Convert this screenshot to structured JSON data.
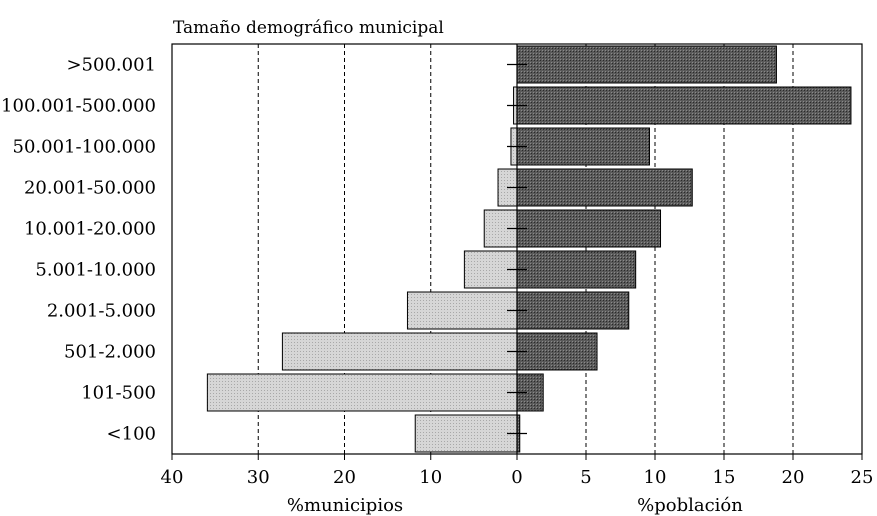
{
  "chart_data": {
    "type": "bar",
    "title": "Tamaño demográfico municipal",
    "categories": [
      ">500.001",
      "100.001-500.000",
      "50.001-100.000",
      "20.001-50.000",
      "10.001-20.000",
      "5.001-10.000",
      "2.001-5.000",
      "501-2.000",
      "101-500",
      "<100"
    ],
    "series": [
      {
        "name": "%municipios",
        "values": [
          0.0,
          0.4,
          0.7,
          2.2,
          3.8,
          6.1,
          12.7,
          27.2,
          35.9,
          11.8
        ],
        "color": "#d4d4d4",
        "xlim": [
          40,
          0
        ],
        "ticks": [
          "40",
          "30",
          "20",
          "10",
          "0"
        ],
        "xlabel": "%municipios"
      },
      {
        "name": "%población",
        "values": [
          18.8,
          24.2,
          9.6,
          12.7,
          10.4,
          8.6,
          8.1,
          5.8,
          1.9,
          0.2
        ],
        "color": "#555555",
        "xlim": [
          0,
          25
        ],
        "ticks": [
          "5",
          "10",
          "15",
          "20",
          "25"
        ],
        "xlabel": "%población"
      }
    ],
    "grid": "vertical dashed"
  }
}
